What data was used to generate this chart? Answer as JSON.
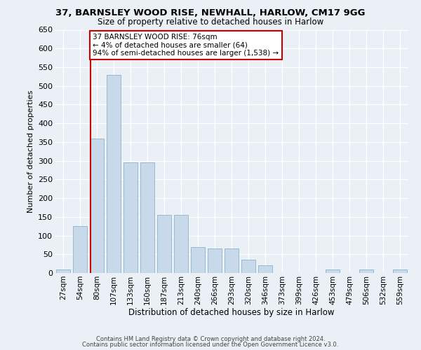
{
  "title": "37, BARNSLEY WOOD RISE, NEWHALL, HARLOW, CM17 9GG",
  "subtitle": "Size of property relative to detached houses in Harlow",
  "xlabel": "Distribution of detached houses by size in Harlow",
  "ylabel": "Number of detached properties",
  "bar_color": "#c8d9ea",
  "bar_edge_color": "#7aaac8",
  "annotation_line_color": "#cc0000",
  "annotation_box_edge": "#cc0000",
  "annotation_line1": "37 BARNSLEY WOOD RISE: 76sqm",
  "annotation_line2": "← 4% of detached houses are smaller (64)",
  "annotation_line3": "94% of semi-detached houses are larger (1,538) →",
  "categories": [
    "27sqm",
    "54sqm",
    "80sqm",
    "107sqm",
    "133sqm",
    "160sqm",
    "187sqm",
    "213sqm",
    "240sqm",
    "266sqm",
    "293sqm",
    "320sqm",
    "346sqm",
    "373sqm",
    "399sqm",
    "426sqm",
    "453sqm",
    "479sqm",
    "506sqm",
    "532sqm",
    "559sqm"
  ],
  "bar_values": [
    10,
    125,
    360,
    530,
    295,
    295,
    155,
    155,
    70,
    65,
    65,
    35,
    20,
    0,
    0,
    0,
    10,
    0,
    10,
    0,
    10
  ],
  "ylim": [
    0,
    650
  ],
  "yticks": [
    0,
    50,
    100,
    150,
    200,
    250,
    300,
    350,
    400,
    450,
    500,
    550,
    600,
    650
  ],
  "property_line_x": 1.62,
  "footer1": "Contains HM Land Registry data © Crown copyright and database right 2024.",
  "footer2": "Contains public sector information licensed under the Open Government Licence v3.0.",
  "bg_color": "#eaf0f6"
}
